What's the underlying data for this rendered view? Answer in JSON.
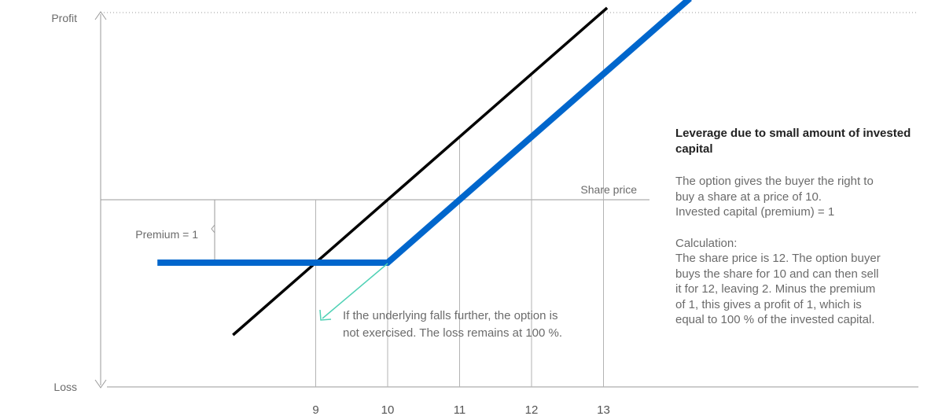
{
  "chart_data": {
    "type": "line",
    "y_axis_top_label": "Profit",
    "y_axis_bottom_label": "Loss",
    "x_tick_labels": [
      "9",
      "10",
      "11",
      "12",
      "13"
    ],
    "x_ticks": [
      9,
      10,
      11,
      12,
      13
    ],
    "share_price_label": "Share price",
    "premium_label": "Premium = 1",
    "premium": 1,
    "strike": 10,
    "grid": "vertical lines at ticks",
    "share_line": {
      "points": [
        [
          7.85,
          -2.15
        ],
        [
          13.05,
          3.05
        ]
      ],
      "color": "#000000"
    },
    "option_line": {
      "points": [
        [
          6.8,
          -1
        ],
        [
          10,
          -1
        ],
        [
          14.2,
          3.2
        ]
      ],
      "color": "#0066cc"
    },
    "arrow_note_lines": [
      "If the underlying falls further, the option is",
      "not exercised. The loss remains at 100 %."
    ],
    "arrow_color": "#4fd1b5",
    "gridline_color": "#b3b3b3"
  },
  "sidebar": {
    "title": "Leverage due to small amount of invested capital",
    "para1": "The option gives the buyer the right to\nbuy a share at a price of 10.\nInvested capital (premium) = 1",
    "para2": "Calculation:\nThe share price is 12. The option buyer\nbuys the share for 10 and can then sell\nit for 12, leaving 2. Minus the premium\nof 1, this gives a profit of 1, which is\nequal to 100 % of the invested capital."
  }
}
